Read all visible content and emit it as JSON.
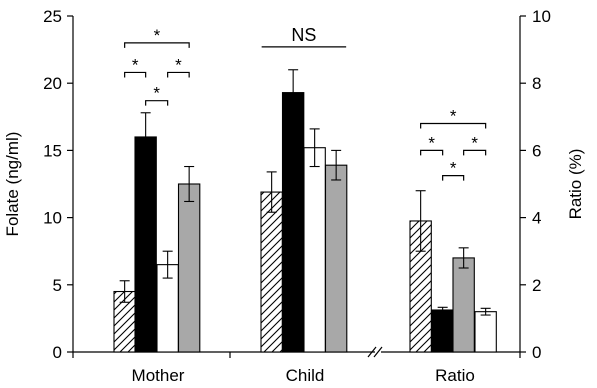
{
  "chart_data": {
    "type": "bar",
    "groups": [
      "Mother",
      "Child",
      "Ratio"
    ],
    "left_axis": {
      "label": "Folate (ng/ml)",
      "ylim": [
        0,
        25
      ],
      "ticks": [
        "0",
        "5",
        "10",
        "15",
        "20",
        "25"
      ]
    },
    "right_axis": {
      "label": "Ratio (%)",
      "ylim": [
        0,
        10
      ],
      "ticks": [
        "0",
        "2",
        "4",
        "6",
        "8",
        "10"
      ]
    },
    "bar_styles": [
      "hatched",
      "black",
      "white",
      "grey"
    ],
    "colors": {
      "black": "#000000",
      "white": "#ffffff",
      "grey": "#a8a8a8",
      "hatch": "#000000"
    },
    "bars": [
      {
        "group": "Mother",
        "style": "hatched",
        "value": 4.5,
        "err": 0.8,
        "axis": "left"
      },
      {
        "group": "Mother",
        "style": "black",
        "value": 16.0,
        "err": 1.8,
        "axis": "left"
      },
      {
        "group": "Mother",
        "style": "white",
        "value": 6.5,
        "err": 1.0,
        "axis": "left"
      },
      {
        "group": "Mother",
        "style": "grey",
        "value": 12.5,
        "err": 1.3,
        "axis": "left"
      },
      {
        "group": "Child",
        "style": "hatched",
        "value": 11.9,
        "err": 1.5,
        "axis": "left"
      },
      {
        "group": "Child",
        "style": "black",
        "value": 19.3,
        "err": 1.7,
        "axis": "left"
      },
      {
        "group": "Child",
        "style": "white",
        "value": 15.2,
        "err": 1.4,
        "axis": "left"
      },
      {
        "group": "Child",
        "style": "grey",
        "value": 13.9,
        "err": 1.1,
        "axis": "left"
      },
      {
        "group": "Ratio",
        "style": "hatched",
        "value": 3.9,
        "err": 0.9,
        "axis": "right"
      },
      {
        "group": "Ratio",
        "style": "black",
        "value": 1.25,
        "err": 0.08,
        "axis": "right"
      },
      {
        "group": "Ratio",
        "style": "grey",
        "value": 2.8,
        "err": 0.3,
        "axis": "right"
      },
      {
        "group": "Ratio",
        "style": "white",
        "value": 1.2,
        "err": 0.1,
        "axis": "right"
      }
    ],
    "annotations": [
      {
        "group": "Mother",
        "text": "*",
        "from_bar": 0,
        "to_bar": 3,
        "level": 23.0,
        "axis": "left"
      },
      {
        "group": "Mother",
        "text": "*",
        "from_bar": 0,
        "to_bar": 1,
        "level": 20.8,
        "axis": "left"
      },
      {
        "group": "Mother",
        "text": "*",
        "from_bar": 2,
        "to_bar": 3,
        "level": 20.8,
        "axis": "left"
      },
      {
        "group": "Mother",
        "text": "*",
        "from_bar": 1,
        "to_bar": 2,
        "level": 18.7,
        "axis": "left"
      },
      {
        "group": "Child",
        "text": "NS",
        "from_bar": 0,
        "to_bar": 3,
        "level": 22.7,
        "axis": "left"
      },
      {
        "group": "Ratio",
        "text": "*",
        "from_bar": 0,
        "to_bar": 3,
        "level": 6.8,
        "axis": "right"
      },
      {
        "group": "Ratio",
        "text": "*",
        "from_bar": 0,
        "to_bar": 1,
        "level": 6.0,
        "axis": "right"
      },
      {
        "group": "Ratio",
        "text": "*",
        "from_bar": 2,
        "to_bar": 3,
        "level": 6.0,
        "axis": "right"
      },
      {
        "group": "Ratio",
        "text": "*",
        "from_bar": 1,
        "to_bar": 2,
        "level": 5.25,
        "axis": "right"
      }
    ],
    "axis_break_between": [
      "Child",
      "Ratio"
    ],
    "grid": false,
    "legend": "none"
  }
}
